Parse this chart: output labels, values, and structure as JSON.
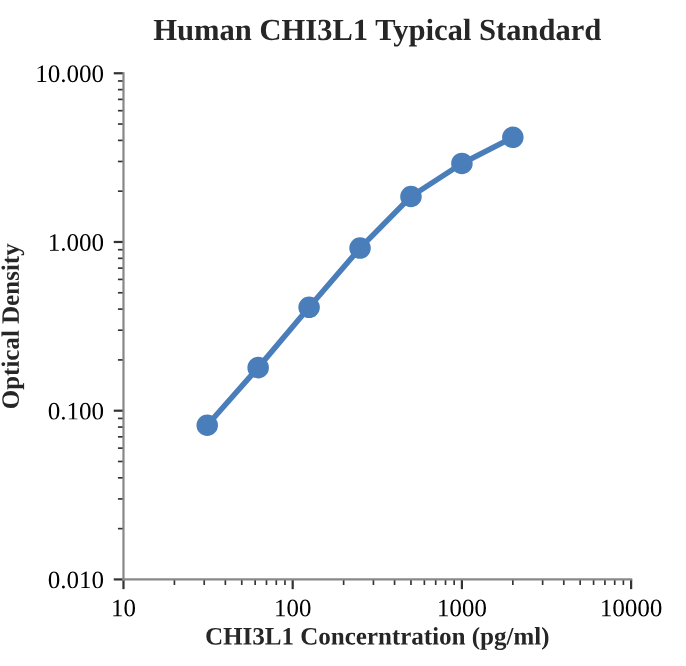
{
  "chart_data": {
    "type": "line",
    "title": "Human CHI3L1 Typical Standard",
    "xlabel": "CHI3L1 Concerntration (pg/ml)",
    "ylabel": "Optical Density",
    "x": [
      31.25,
      62.5,
      125,
      250,
      500,
      1000,
      2000
    ],
    "series": [
      {
        "color": "#4a7ebb",
        "values": [
          0.082,
          0.18,
          0.41,
          0.92,
          1.86,
          2.92,
          4.17
        ]
      }
    ],
    "log": "xy",
    "xlim": [
      10,
      10000
    ],
    "ylim": [
      0.01,
      10
    ],
    "xticks": [
      10,
      100,
      1000,
      10000
    ],
    "yticks": [
      {
        "value": 0.01,
        "label": "0.010"
      },
      {
        "value": 0.1,
        "label": "0.100"
      },
      {
        "value": 1,
        "label": "1.000"
      },
      {
        "value": 10,
        "label": "10.000"
      }
    ],
    "marker": "circle",
    "line_style": "solid",
    "grid": false,
    "legend": false
  }
}
